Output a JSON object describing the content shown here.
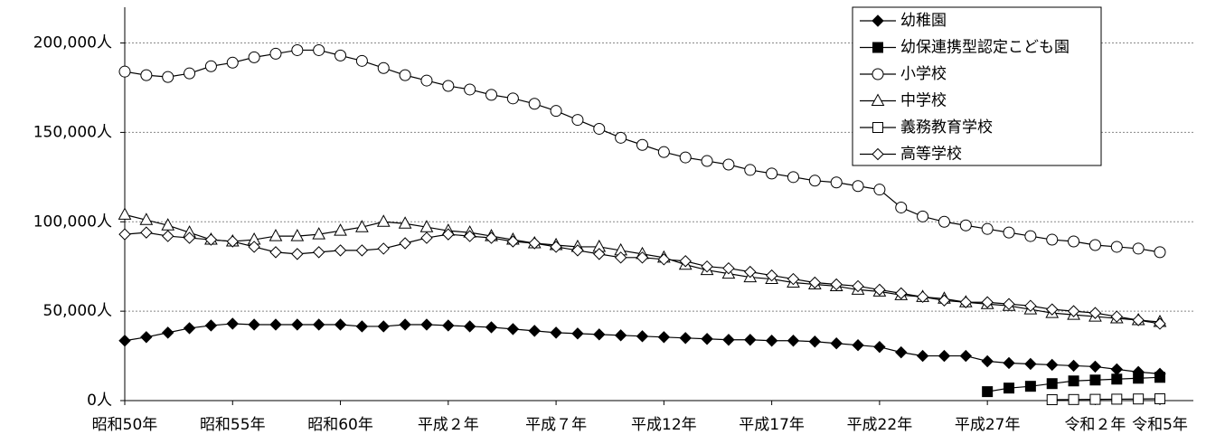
{
  "chart_data": {
    "type": "line",
    "categories": [
      "昭和50年",
      null,
      null,
      null,
      null,
      "昭和55年",
      null,
      null,
      null,
      null,
      "昭和60年",
      null,
      null,
      null,
      null,
      "平成２年",
      null,
      null,
      null,
      null,
      "平成７年",
      null,
      null,
      null,
      null,
      "平成12年",
      null,
      null,
      null,
      null,
      "平成17年",
      null,
      null,
      null,
      null,
      "平成22年",
      null,
      null,
      null,
      null,
      "平成27年",
      null,
      null,
      null,
      null,
      "令和２年",
      null,
      null,
      "令和5年"
    ],
    "ylim": [
      0,
      220000
    ],
    "yticks": [
      {
        "value": 0,
        "label": "0人"
      },
      {
        "value": 50000,
        "label": "50,000人"
      },
      {
        "value": 100000,
        "label": "100,000人"
      },
      {
        "value": 150000,
        "label": "150,000人"
      },
      {
        "value": 200000,
        "label": "200,000人"
      }
    ],
    "grid": true,
    "legend": "upper right",
    "series": [
      {
        "name": "幼稚園",
        "color": "#000000",
        "marker": "diamond",
        "filled": true,
        "values": [
          33500,
          35500,
          38000,
          40500,
          42000,
          43000,
          42500,
          42500,
          42500,
          42500,
          42500,
          41500,
          41500,
          42500,
          42500,
          42000,
          41500,
          41000,
          40000,
          39000,
          38000,
          37500,
          37000,
          36500,
          36000,
          35500,
          35000,
          34500,
          34000,
          34000,
          33500,
          33500,
          33000,
          32000,
          31000,
          30000,
          27000,
          25000,
          25000,
          25000,
          22000,
          21000,
          20500,
          20000,
          19500,
          19000,
          17500,
          16000,
          15000
        ]
      },
      {
        "name": "幼保連携型認定こども園",
        "color": "#000000",
        "marker": "square",
        "filled": true,
        "values": [
          null,
          null,
          null,
          null,
          null,
          null,
          null,
          null,
          null,
          null,
          null,
          null,
          null,
          null,
          null,
          null,
          null,
          null,
          null,
          null,
          null,
          null,
          null,
          null,
          null,
          null,
          null,
          null,
          null,
          null,
          null,
          null,
          null,
          null,
          null,
          null,
          null,
          null,
          null,
          null,
          5000,
          7000,
          8000,
          9500,
          11000,
          11500,
          12000,
          12500,
          13000
        ]
      },
      {
        "name": "小学校",
        "color": "#000000",
        "marker": "circle",
        "filled": false,
        "values": [
          184000,
          182000,
          181000,
          183000,
          187000,
          189000,
          192000,
          194000,
          196000,
          196000,
          193000,
          190000,
          186000,
          182000,
          179000,
          176000,
          174000,
          171000,
          169000,
          166000,
          162000,
          157000,
          152000,
          147000,
          143000,
          139000,
          136000,
          134000,
          132000,
          129000,
          127000,
          125000,
          123000,
          122000,
          120000,
          118000,
          108000,
          103000,
          100000,
          98000,
          96000,
          94000,
          92000,
          90000,
          89000,
          87000,
          86000,
          85000,
          83000
        ]
      },
      {
        "name": "中学校",
        "color": "#000000",
        "marker": "triangle",
        "filled": false,
        "values": [
          104000,
          101000,
          98000,
          94000,
          90000,
          89000,
          90000,
          92000,
          92000,
          93000,
          95000,
          97000,
          100000,
          99000,
          97000,
          95000,
          94000,
          92000,
          90000,
          88000,
          87000,
          86000,
          86000,
          84000,
          82000,
          80000,
          76000,
          73000,
          71000,
          69000,
          68000,
          66000,
          65000,
          64000,
          62000,
          61000,
          59000,
          58000,
          57000,
          55000,
          54000,
          53000,
          51000,
          49000,
          48000,
          47000,
          46000,
          45000,
          44000
        ]
      },
      {
        "name": "義務教育学校",
        "color": "#000000",
        "marker": "square",
        "filled": false,
        "values": [
          null,
          null,
          null,
          null,
          null,
          null,
          null,
          null,
          null,
          null,
          null,
          null,
          null,
          null,
          null,
          null,
          null,
          null,
          null,
          null,
          null,
          null,
          null,
          null,
          null,
          null,
          null,
          null,
          null,
          null,
          null,
          null,
          null,
          null,
          null,
          null,
          null,
          null,
          null,
          null,
          null,
          null,
          null,
          500,
          600,
          700,
          800,
          900,
          1000
        ]
      },
      {
        "name": "高等学校",
        "color": "#000000",
        "marker": "diamond",
        "filled": false,
        "values": [
          93000,
          94000,
          92000,
          91000,
          90000,
          89000,
          86000,
          83000,
          82000,
          83000,
          84000,
          84000,
          85000,
          88000,
          91000,
          93000,
          92000,
          91000,
          89000,
          88000,
          86000,
          84000,
          82000,
          80000,
          80000,
          79000,
          78000,
          75000,
          74000,
          72000,
          70000,
          68000,
          66000,
          65000,
          64000,
          62000,
          60000,
          58000,
          56000,
          55000,
          55000,
          54000,
          53000,
          51000,
          50000,
          49000,
          47000,
          45000,
          43000
        ]
      }
    ]
  }
}
